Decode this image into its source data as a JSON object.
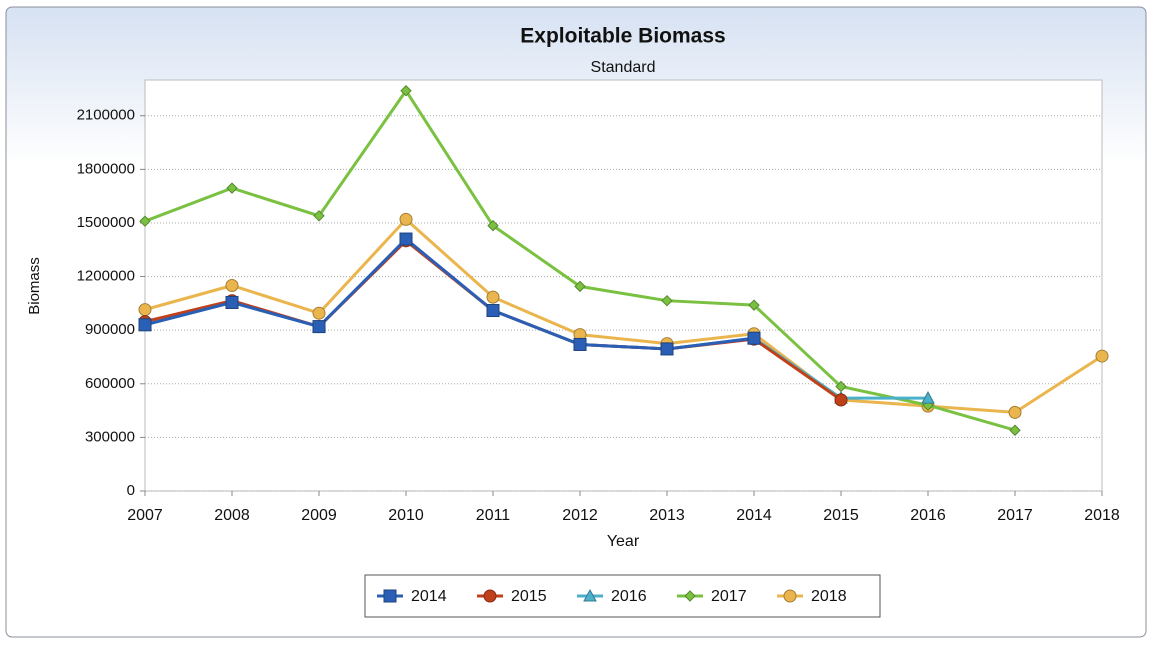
{
  "chart_data": {
    "type": "line",
    "title": "Exploitable Biomass",
    "subtitle": "Standard",
    "x_label": "Year",
    "y_label": "Biomass",
    "x": [
      2007,
      2008,
      2009,
      2010,
      2011,
      2012,
      2013,
      2014,
      2015,
      2016,
      2017,
      2018
    ],
    "xlim": [
      2007,
      2018
    ],
    "xticks": [
      2007,
      2008,
      2009,
      2010,
      2011,
      2012,
      2013,
      2014,
      2015,
      2016,
      2017,
      2018
    ],
    "ylim": [
      0,
      2300000
    ],
    "yticks": [
      0,
      300000,
      600000,
      900000,
      1200000,
      1500000,
      1800000,
      2100000
    ],
    "grid": true,
    "legend": "bottom",
    "series": [
      {
        "name": "2014",
        "color": "#2a5fb5",
        "marker": "square",
        "values": [
          930000,
          1055000,
          920000,
          1410000,
          1010000,
          820000,
          795000,
          855000,
          null,
          null,
          null,
          null
        ]
      },
      {
        "name": "2015",
        "color": "#c0401a",
        "marker": "circle",
        "values": [
          948000,
          1065000,
          920000,
          1400000,
          1010000,
          820000,
          795000,
          850000,
          510000,
          null,
          null,
          null
        ]
      },
      {
        "name": "2016",
        "color": "#4bb0c9",
        "marker": "triangle",
        "values": [
          930000,
          1055000,
          920000,
          1405000,
          1010000,
          820000,
          795000,
          855000,
          520000,
          520000,
          null,
          null
        ]
      },
      {
        "name": "2017",
        "color": "#7ac142",
        "marker": "diamond",
        "values": [
          1510000,
          1695000,
          1540000,
          2240000,
          1485000,
          1145000,
          1065000,
          1040000,
          585000,
          480000,
          340000,
          null
        ]
      },
      {
        "name": "2018",
        "color": "#eab54c",
        "marker": "circle",
        "values": [
          1015000,
          1150000,
          995000,
          1520000,
          1085000,
          875000,
          825000,
          880000,
          510000,
          475000,
          440000,
          755000
        ]
      }
    ]
  }
}
